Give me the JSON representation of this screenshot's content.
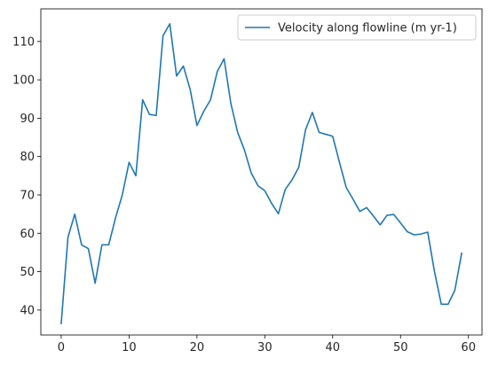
{
  "chart_data": {
    "type": "line",
    "title": "",
    "xlabel": "",
    "ylabel": "",
    "xlim": [
      -3,
      62
    ],
    "ylim": [
      33.5,
      118.5
    ],
    "xticks": [
      0,
      10,
      20,
      30,
      40,
      50,
      60
    ],
    "yticks": [
      40,
      50,
      60,
      70,
      80,
      90,
      100,
      110
    ],
    "grid": false,
    "legend_position": "top-right",
    "series": [
      {
        "name": "Velocity along flowline (m yr-1)",
        "color": "#1f77b4",
        "x": [
          0,
          1,
          2,
          3,
          4,
          5,
          6,
          7,
          8,
          9,
          10,
          11,
          12,
          13,
          14,
          15,
          16,
          17,
          18,
          19,
          20,
          21,
          22,
          23,
          24,
          25,
          26,
          27,
          28,
          29,
          30,
          31,
          32,
          33,
          34,
          35,
          36,
          37,
          38,
          39,
          40,
          41,
          42,
          43,
          44,
          45,
          46,
          47,
          48,
          49,
          50,
          51,
          52,
          53,
          54,
          55,
          56,
          57,
          58,
          59
        ],
        "values": [
          36.5,
          59.0,
          65.0,
          57.0,
          56.0,
          47.0,
          57.0,
          57.0,
          64.0,
          70.0,
          78.5,
          75.0,
          94.8,
          91.0,
          90.7,
          111.5,
          114.6,
          101.0,
          103.6,
          97.5,
          88.1,
          91.8,
          94.8,
          102.2,
          105.5,
          93.8,
          86.3,
          81.7,
          75.7,
          72.4,
          71.1,
          67.8,
          65.1,
          71.4,
          73.9,
          77.2,
          87.0,
          91.5,
          86.3,
          85.8,
          85.3,
          78.5,
          71.9,
          68.9,
          65.7,
          66.7,
          64.5,
          62.2,
          64.7,
          64.9,
          62.7,
          60.4,
          59.6,
          59.8,
          60.3,
          50.0,
          41.5,
          41.5,
          45.2,
          54.8
        ]
      }
    ]
  }
}
